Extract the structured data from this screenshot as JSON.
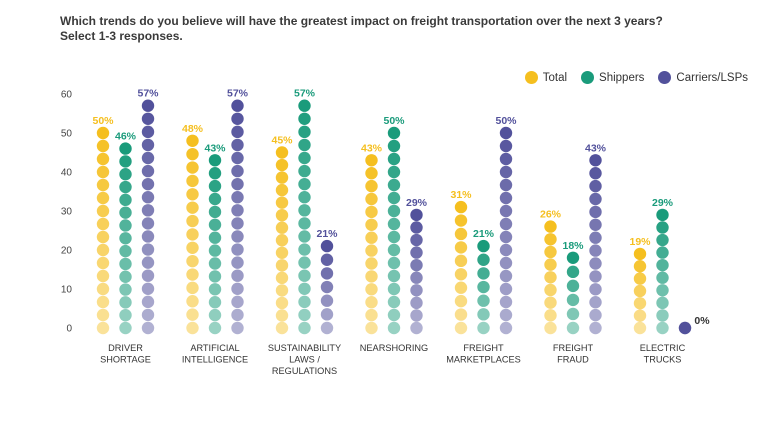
{
  "header": {
    "question": "Which trends do you believe will have the greatest impact on freight transportation over the next 3 years?",
    "instruction": "Select 1-3 responses."
  },
  "colors": {
    "Total": "#f5bf1f",
    "Shippers": "#1a9b7b",
    "Carriers/LSPs": "#52519b"
  },
  "chart_data": {
    "type": "dot-column",
    "title": "Which trends do you believe will have the greatest impact on freight transportation over the next 3 years? Select 1-3 responses.",
    "unit": "%",
    "ylim": [
      0,
      60
    ],
    "yticks": [
      0,
      10,
      20,
      30,
      40,
      50,
      60
    ],
    "grid": false,
    "legend_position": "top-right",
    "categories": [
      [
        "DRIVER",
        "SHORTAGE"
      ],
      [
        "ARTIFICIAL",
        "INTELLIGENCE"
      ],
      [
        "SUSTAINABILITY",
        "LAWS /",
        "REGULATIONS"
      ],
      [
        "NEARSHORING"
      ],
      [
        "FREIGHT",
        "MARKETPLACES"
      ],
      [
        "FREIGHT",
        "FRAUD"
      ],
      [
        "ELECTRIC",
        "TRUCKS"
      ]
    ],
    "series": [
      {
        "name": "Total",
        "values": [
          50,
          48,
          45,
          43,
          31,
          26,
          19
        ]
      },
      {
        "name": "Shippers",
        "values": [
          46,
          43,
          57,
          50,
          21,
          18,
          29
        ]
      },
      {
        "name": "Carriers/LSPs",
        "values": [
          57,
          57,
          21,
          29,
          50,
          43,
          0
        ]
      }
    ]
  }
}
